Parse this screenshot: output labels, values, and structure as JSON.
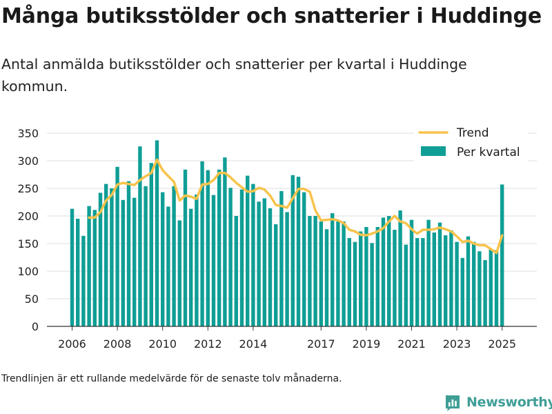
{
  "title": "Många butiksstölder och snatterier i Huddinge",
  "subtitle": "Antal anmälda butiksstölder och snatterier per kvartal i Huddinge kommun.",
  "footnote": "Trendlinjen är ett rullande medelvärde för de senaste tolv månaderna.",
  "brand": {
    "name": "Newsworthy",
    "icon": "newsworthy-chart-logo-icon",
    "color": "#3f9e96"
  },
  "colors": {
    "bars": "#0f9e96",
    "trend": "#f7c34b",
    "grid": "#dddddd",
    "axis": "#333333"
  },
  "chart_data": {
    "type": "bar",
    "title": "",
    "xlabel": "",
    "ylabel": "",
    "ylim": [
      0,
      350
    ],
    "yticks": [
      0,
      50,
      100,
      150,
      200,
      250,
      300,
      350
    ],
    "xticks": [
      {
        "label": "2006",
        "category_index": 0
      },
      {
        "label": "2008",
        "category_index": 8
      },
      {
        "label": "2010",
        "category_index": 16
      },
      {
        "label": "2012",
        "category_index": 24
      },
      {
        "label": "2014",
        "category_index": 32
      },
      {
        "label": "2017",
        "category_index": 44
      },
      {
        "label": "2019",
        "category_index": 52
      },
      {
        "label": "2021",
        "category_index": 60
      },
      {
        "label": "2023",
        "category_index": 68
      },
      {
        "label": "2025",
        "category_index": 76
      }
    ],
    "grid": true,
    "legend": {
      "position": "top-right",
      "entries": [
        "Trend",
        "Per kvartal"
      ]
    },
    "categories": [
      "2006 Q1",
      "2006 Q2",
      "2006 Q3",
      "2006 Q4",
      "2007 Q1",
      "2007 Q2",
      "2007 Q3",
      "2007 Q4",
      "2008 Q1",
      "2008 Q2",
      "2008 Q3",
      "2008 Q4",
      "2009 Q1",
      "2009 Q2",
      "2009 Q3",
      "2009 Q4",
      "2010 Q1",
      "2010 Q2",
      "2010 Q3",
      "2010 Q4",
      "2011 Q1",
      "2011 Q2",
      "2011 Q3",
      "2011 Q4",
      "2012 Q1",
      "2012 Q2",
      "2012 Q3",
      "2012 Q4",
      "2013 Q1",
      "2013 Q2",
      "2013 Q3",
      "2013 Q4",
      "2014 Q1",
      "2014 Q2",
      "2014 Q3",
      "2014 Q4",
      "2015 Q1",
      "2015 Q2",
      "2015 Q3",
      "2015 Q4",
      "2016 Q1",
      "2016 Q2",
      "2016 Q3",
      "2016 Q4",
      "2017 Q1",
      "2017 Q2",
      "2017 Q3",
      "2017 Q4",
      "2018 Q1",
      "2018 Q2",
      "2018 Q3",
      "2018 Q4",
      "2019 Q1",
      "2019 Q2",
      "2019 Q3",
      "2019 Q4",
      "2020 Q1",
      "2020 Q2",
      "2020 Q3",
      "2020 Q4",
      "2021 Q1",
      "2021 Q2",
      "2021 Q3",
      "2021 Q4",
      "2022 Q1",
      "2022 Q2",
      "2022 Q3",
      "2022 Q4",
      "2023 Q1",
      "2023 Q2",
      "2023 Q3",
      "2023 Q4",
      "2024 Q1",
      "2024 Q2",
      "2024 Q3",
      "2024 Q4",
      "2025 Q1"
    ],
    "series": [
      {
        "name": "Per kvartal",
        "type": "bar",
        "values": [
          213,
          195,
          164,
          218,
          211,
          242,
          258,
          250,
          289,
          229,
          263,
          233,
          326,
          254,
          296,
          337,
          243,
          217,
          254,
          192,
          284,
          213,
          239,
          299,
          283,
          238,
          284,
          306,
          251,
          200,
          248,
          273,
          258,
          226,
          232,
          214,
          185,
          245,
          207,
          274,
          271,
          243,
          200,
          200,
          190,
          176,
          205,
          190,
          190,
          160,
          153,
          172,
          180,
          151,
          180,
          197,
          200,
          175,
          210,
          148,
          193,
          160,
          160,
          193,
          170,
          188,
          165,
          174,
          153,
          124,
          163,
          153,
          136,
          120,
          140,
          138,
          257
        ]
      },
      {
        "name": "Trend",
        "type": "line",
        "values": [
          null,
          null,
          null,
          197,
          197,
          207,
          228,
          238,
          257,
          260,
          258,
          256,
          265,
          272,
          278,
          302,
          283,
          272,
          262,
          228,
          237,
          235,
          231,
          257,
          258,
          265,
          278,
          278,
          270,
          260,
          252,
          244,
          245,
          251,
          248,
          237,
          220,
          218,
          215,
          232,
          249,
          249,
          244,
          210,
          192,
          193,
          194,
          192,
          187,
          175,
          172,
          166,
          165,
          168,
          172,
          178,
          190,
          200,
          190,
          187,
          176,
          168,
          175,
          175,
          176,
          179,
          176,
          172,
          163,
          153,
          155,
          150,
          147,
          147,
          140,
          133,
          165
        ]
      }
    ]
  }
}
